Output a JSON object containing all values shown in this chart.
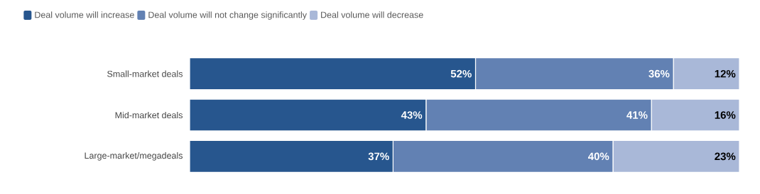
{
  "chart_data": {
    "type": "bar",
    "orientation": "horizontal",
    "stacked": true,
    "categories": [
      "Small-market deals",
      "Mid-market deals",
      "Large-market/megadeals"
    ],
    "series": [
      {
        "name": "Deal volume will increase",
        "color": "#27568e",
        "values": [
          52,
          43,
          37
        ],
        "value_labels": [
          "52%",
          "43%",
          "37%"
        ]
      },
      {
        "name": "Deal volume will not change significantly",
        "color": "#6281b3",
        "values": [
          36,
          41,
          40
        ],
        "value_labels": [
          "36%",
          "41%",
          "40%"
        ]
      },
      {
        "name": "Deal volume will decrease",
        "color": "#a9b8d8",
        "values": [
          12,
          16,
          23
        ],
        "value_labels": [
          "12%",
          "16%",
          "23%"
        ]
      }
    ],
    "xlim": [
      0,
      100
    ],
    "tick_labels": "y",
    "legend": "top left"
  }
}
